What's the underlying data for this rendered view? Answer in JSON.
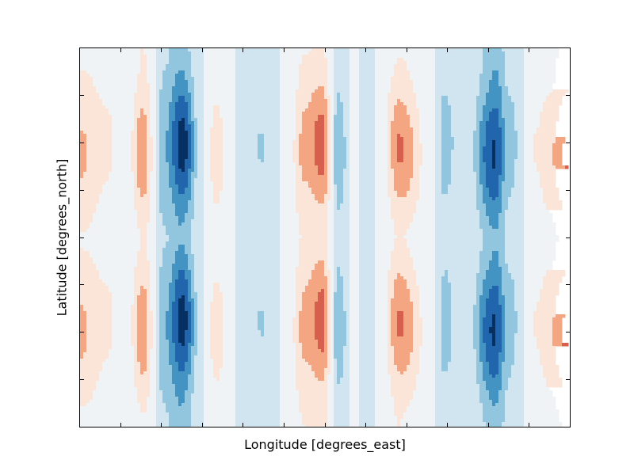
{
  "chart_data": {
    "type": "heatmap",
    "subtype": "filled-contour",
    "colormap": "RdBu_r",
    "colormap_colors": [
      "#053061",
      "#2166ac",
      "#4393c3",
      "#92c5de",
      "#d1e5f0",
      "#f0f3f5",
      "#fbe5d8",
      "#f4a582",
      "#d6604d",
      "#b2182b",
      "#67001f"
    ],
    "title": "",
    "xlabel": "Longitude [degrees_east]",
    "ylabel": "Latitude [degrees_north]",
    "xlim": [
      0,
      360
    ],
    "ylim": [
      -90,
      90
    ],
    "x_ticks": [
      0,
      30,
      60,
      90,
      120,
      150,
      180,
      210,
      240,
      270,
      300,
      330,
      360
    ],
    "y_ticks": [
      -90,
      -67.5,
      -45,
      -22.5,
      0,
      22.5,
      45,
      67.5,
      90
    ],
    "tick_labels_shown": false,
    "levels": [
      -1.0,
      -0.8,
      -0.6,
      -0.4,
      -0.2,
      0.0,
      0.2,
      0.4,
      0.6,
      0.8,
      1.0
    ],
    "longitude_bands": [
      {
        "lon": 0,
        "peak": 0.45
      },
      {
        "lon": 20,
        "peak": 0.25
      },
      {
        "lon": 33,
        "peak": 0.0
      },
      {
        "lon": 46,
        "peak": 0.55
      },
      {
        "lon": 62,
        "peak": -0.4
      },
      {
        "lon": 75,
        "peak": -0.9
      },
      {
        "lon": 90,
        "peak": 0.0
      },
      {
        "lon": 100,
        "peak": 0.3
      },
      {
        "lon": 115,
        "peak": 0.0
      },
      {
        "lon": 133,
        "peak": -0.2
      },
      {
        "lon": 152,
        "peak": 0.05
      },
      {
        "lon": 165,
        "peak": 0.5
      },
      {
        "lon": 178,
        "peak": 0.7
      },
      {
        "lon": 190,
        "peak": -0.35
      },
      {
        "lon": 202,
        "peak": 0.1
      },
      {
        "lon": 208,
        "peak": -0.2
      },
      {
        "lon": 220,
        "peak": 0.05
      },
      {
        "lon": 235,
        "peak": 0.6
      },
      {
        "lon": 257,
        "peak": 0.1
      },
      {
        "lon": 268,
        "peak": -0.3
      },
      {
        "lon": 283,
        "peak": 0.0
      },
      {
        "lon": 305,
        "peak": -0.85
      },
      {
        "lon": 315,
        "peak": -0.3
      },
      {
        "lon": 335,
        "peak": 0.2
      },
      {
        "lon": 345,
        "peak": 0.35
      },
      {
        "lon": 357,
        "peak": 0.65
      }
    ],
    "midlatitude_maxima_lat": [
      42,
      -42
    ]
  }
}
